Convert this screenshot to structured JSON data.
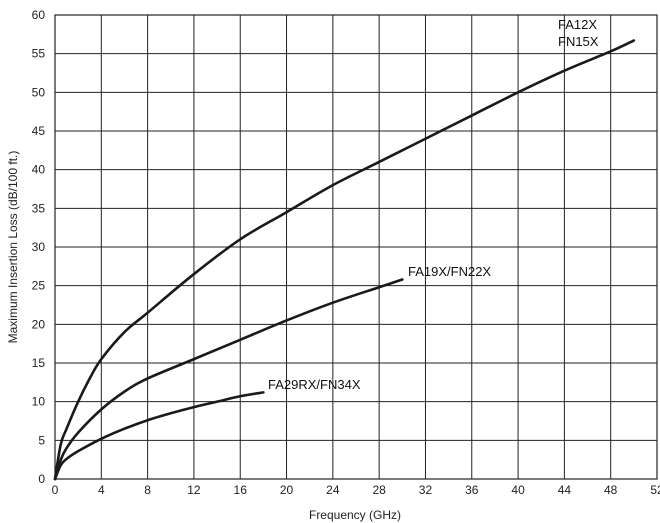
{
  "chart_data": {
    "type": "line",
    "title": "",
    "xlabel": "Frequency (GHz)",
    "ylabel": "Maximum Insertion Loss (dB/100 ft.)",
    "xlim": [
      0,
      52
    ],
    "ylim": [
      0,
      60
    ],
    "xticks": [
      "0",
      "4",
      "8",
      "12",
      "16",
      "20",
      "24",
      "28",
      "32",
      "36",
      "40",
      "44",
      "48",
      "52"
    ],
    "yticks": [
      "0",
      "5",
      "10",
      "15",
      "20",
      "25",
      "30",
      "35",
      "40",
      "45",
      "50",
      "55",
      "60"
    ],
    "grid": true,
    "legend": "none",
    "series": [
      {
        "name": "FA12X",
        "name_line2": "FN15X",
        "x": [
          0,
          0.5,
          1,
          2,
          3,
          4,
          6,
          8,
          12,
          16,
          20,
          24,
          28,
          32,
          36,
          40,
          44,
          48,
          50
        ],
        "y": [
          0,
          4.5,
          6.5,
          10,
          13,
          15.5,
          19,
          21.5,
          26.5,
          31,
          34.5,
          38,
          41,
          44,
          47,
          50,
          52.8,
          55.3,
          56.7
        ]
      },
      {
        "name": "FA19X/FN22X",
        "x": [
          0,
          0.5,
          1,
          2,
          4,
          6,
          8,
          12,
          16,
          20,
          24,
          28,
          30
        ],
        "y": [
          0,
          2.5,
          4,
          6,
          9,
          11.3,
          13,
          15.5,
          18,
          20.5,
          22.8,
          24.8,
          25.8
        ]
      },
      {
        "name": "FA29RX/FN34X",
        "x": [
          0,
          0.5,
          1,
          2,
          4,
          6,
          8,
          10,
          12,
          14,
          16,
          18
        ],
        "y": [
          0,
          1.8,
          2.6,
          3.6,
          5.2,
          6.5,
          7.6,
          8.5,
          9.3,
          10.0,
          10.7,
          11.2
        ]
      }
    ]
  }
}
